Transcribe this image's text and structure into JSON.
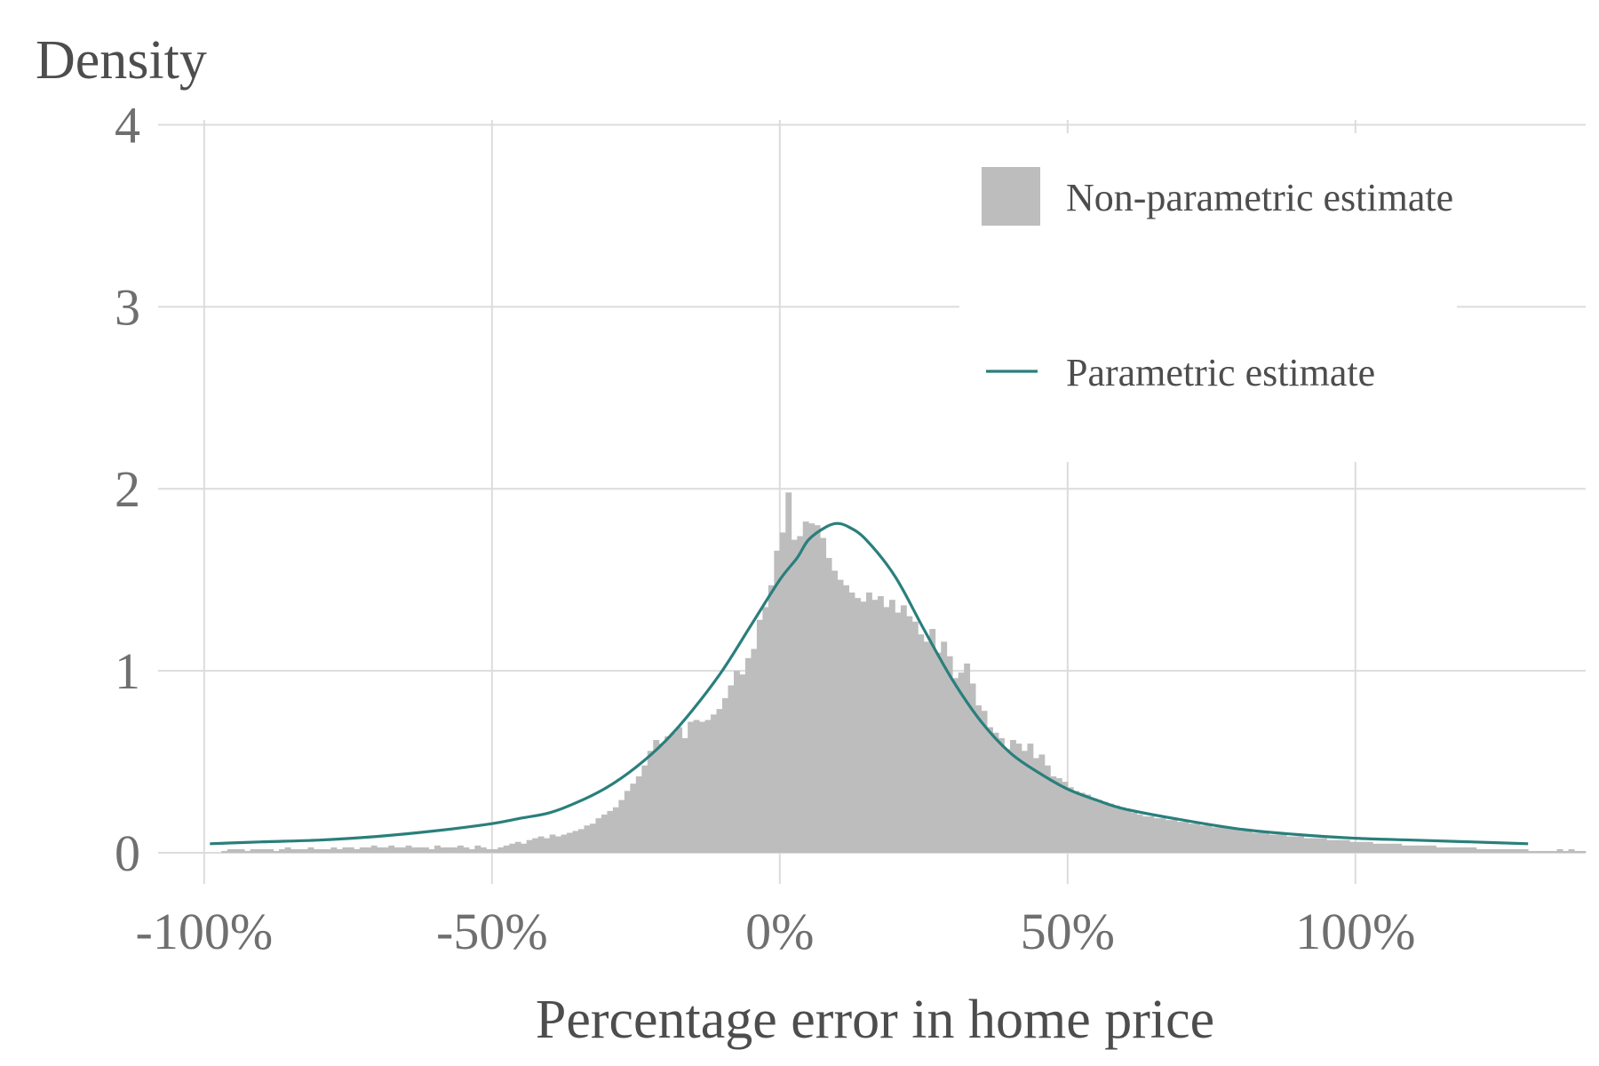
{
  "chart_data": {
    "type": "histogram+line",
    "ylabel": "Density",
    "xlabel": "Percentage error in home price",
    "xlim": [
      -1.08,
      1.4
    ],
    "ylim": [
      0,
      4.1
    ],
    "xticks": [
      {
        "value": -1.0,
        "label": "-100%"
      },
      {
        "value": -0.5,
        "label": "-50%"
      },
      {
        "value": 0.0,
        "label": "0%"
      },
      {
        "value": 0.5,
        "label": "50%"
      },
      {
        "value": 1.0,
        "label": "100%"
      }
    ],
    "yticks": [
      {
        "value": 0,
        "label": "0"
      },
      {
        "value": 1,
        "label": "1"
      },
      {
        "value": 2,
        "label": "2"
      },
      {
        "value": 3,
        "label": "3"
      },
      {
        "value": 4,
        "label": "4"
      }
    ],
    "grid": true,
    "legend": {
      "placement": "top-right",
      "entries": [
        {
          "label": "Non-parametric estimate",
          "kind": "fill",
          "color": "#bdbdbd"
        },
        {
          "label": "Parametric estimate",
          "kind": "line",
          "color": "#2a7f7c"
        }
      ]
    },
    "histogram": {
      "name": "Non-parametric estimate",
      "color": "#bdbdbd",
      "bin_width": 0.01,
      "bins": [
        [
          -0.97,
          0.01
        ],
        [
          -0.96,
          0.02
        ],
        [
          -0.95,
          0.02
        ],
        [
          -0.94,
          0.02
        ],
        [
          -0.93,
          0.01
        ],
        [
          -0.92,
          0.02
        ],
        [
          -0.91,
          0.02
        ],
        [
          -0.9,
          0.02
        ],
        [
          -0.89,
          0.02
        ],
        [
          -0.88,
          0.01
        ],
        [
          -0.87,
          0.02
        ],
        [
          -0.86,
          0.03
        ],
        [
          -0.85,
          0.02
        ],
        [
          -0.84,
          0.02
        ],
        [
          -0.83,
          0.02
        ],
        [
          -0.82,
          0.03
        ],
        [
          -0.81,
          0.02
        ],
        [
          -0.8,
          0.02
        ],
        [
          -0.79,
          0.02
        ],
        [
          -0.78,
          0.03
        ],
        [
          -0.77,
          0.02
        ],
        [
          -0.76,
          0.03
        ],
        [
          -0.75,
          0.03
        ],
        [
          -0.74,
          0.02
        ],
        [
          -0.73,
          0.03
        ],
        [
          -0.72,
          0.03
        ],
        [
          -0.71,
          0.04
        ],
        [
          -0.7,
          0.03
        ],
        [
          -0.69,
          0.03
        ],
        [
          -0.68,
          0.04
        ],
        [
          -0.67,
          0.03
        ],
        [
          -0.66,
          0.03
        ],
        [
          -0.65,
          0.04
        ],
        [
          -0.64,
          0.03
        ],
        [
          -0.63,
          0.03
        ],
        [
          -0.62,
          0.03
        ],
        [
          -0.61,
          0.02
        ],
        [
          -0.6,
          0.04
        ],
        [
          -0.59,
          0.03
        ],
        [
          -0.58,
          0.03
        ],
        [
          -0.57,
          0.03
        ],
        [
          -0.56,
          0.04
        ],
        [
          -0.55,
          0.03
        ],
        [
          -0.54,
          0.02
        ],
        [
          -0.53,
          0.04
        ],
        [
          -0.52,
          0.03
        ],
        [
          -0.51,
          0.02
        ],
        [
          -0.5,
          0.02
        ],
        [
          -0.49,
          0.03
        ],
        [
          -0.48,
          0.04
        ],
        [
          -0.47,
          0.05
        ],
        [
          -0.46,
          0.06
        ],
        [
          -0.45,
          0.05
        ],
        [
          -0.44,
          0.07
        ],
        [
          -0.43,
          0.08
        ],
        [
          -0.42,
          0.09
        ],
        [
          -0.41,
          0.08
        ],
        [
          -0.4,
          0.1
        ],
        [
          -0.39,
          0.09
        ],
        [
          -0.38,
          0.1
        ],
        [
          -0.37,
          0.11
        ],
        [
          -0.36,
          0.12
        ],
        [
          -0.35,
          0.13
        ],
        [
          -0.34,
          0.15
        ],
        [
          -0.33,
          0.16
        ],
        [
          -0.32,
          0.19
        ],
        [
          -0.31,
          0.21
        ],
        [
          -0.3,
          0.23
        ],
        [
          -0.29,
          0.25
        ],
        [
          -0.28,
          0.29
        ],
        [
          -0.27,
          0.34
        ],
        [
          -0.26,
          0.38
        ],
        [
          -0.25,
          0.42
        ],
        [
          -0.24,
          0.48
        ],
        [
          -0.23,
          0.56
        ],
        [
          -0.22,
          0.62
        ],
        [
          -0.21,
          0.6
        ],
        [
          -0.2,
          0.64
        ],
        [
          -0.19,
          0.66
        ],
        [
          -0.18,
          0.69
        ],
        [
          -0.17,
          0.63
        ],
        [
          -0.16,
          0.72
        ],
        [
          -0.15,
          0.73
        ],
        [
          -0.14,
          0.72
        ],
        [
          -0.13,
          0.73
        ],
        [
          -0.12,
          0.76
        ],
        [
          -0.11,
          0.79
        ],
        [
          -0.1,
          0.85
        ],
        [
          -0.09,
          0.92
        ],
        [
          -0.08,
          1.0
        ],
        [
          -0.07,
          0.98
        ],
        [
          -0.06,
          1.07
        ],
        [
          -0.05,
          1.12
        ],
        [
          -0.04,
          1.28
        ],
        [
          -0.03,
          1.35
        ],
        [
          -0.02,
          1.47
        ],
        [
          -0.01,
          1.66
        ],
        [
          0.0,
          1.76
        ],
        [
          0.01,
          1.98
        ],
        [
          0.02,
          1.72
        ],
        [
          0.03,
          1.74
        ],
        [
          0.04,
          1.82
        ],
        [
          0.05,
          1.81
        ],
        [
          0.06,
          1.8
        ],
        [
          0.07,
          1.73
        ],
        [
          0.08,
          1.62
        ],
        [
          0.09,
          1.55
        ],
        [
          0.1,
          1.5
        ],
        [
          0.11,
          1.47
        ],
        [
          0.12,
          1.43
        ],
        [
          0.13,
          1.4
        ],
        [
          0.14,
          1.38
        ],
        [
          0.15,
          1.43
        ],
        [
          0.16,
          1.39
        ],
        [
          0.17,
          1.41
        ],
        [
          0.18,
          1.35
        ],
        [
          0.19,
          1.39
        ],
        [
          0.2,
          1.32
        ],
        [
          0.21,
          1.36
        ],
        [
          0.22,
          1.3
        ],
        [
          0.23,
          1.27
        ],
        [
          0.24,
          1.2
        ],
        [
          0.25,
          1.16
        ],
        [
          0.26,
          1.23
        ],
        [
          0.27,
          1.1
        ],
        [
          0.28,
          1.16
        ],
        [
          0.29,
          1.08
        ],
        [
          0.3,
          0.96
        ],
        [
          0.31,
          0.99
        ],
        [
          0.32,
          1.04
        ],
        [
          0.33,
          0.93
        ],
        [
          0.34,
          0.81
        ],
        [
          0.35,
          0.78
        ],
        [
          0.36,
          0.69
        ],
        [
          0.37,
          0.66
        ],
        [
          0.38,
          0.63
        ],
        [
          0.39,
          0.57
        ],
        [
          0.4,
          0.62
        ],
        [
          0.41,
          0.6
        ],
        [
          0.42,
          0.56
        ],
        [
          0.43,
          0.6
        ],
        [
          0.44,
          0.52
        ],
        [
          0.45,
          0.54
        ],
        [
          0.46,
          0.48
        ],
        [
          0.47,
          0.42
        ],
        [
          0.48,
          0.41
        ],
        [
          0.49,
          0.39
        ],
        [
          0.5,
          0.36
        ],
        [
          0.51,
          0.34
        ],
        [
          0.52,
          0.33
        ],
        [
          0.53,
          0.32
        ],
        [
          0.54,
          0.3
        ],
        [
          0.55,
          0.29
        ],
        [
          0.56,
          0.28
        ],
        [
          0.57,
          0.27
        ],
        [
          0.58,
          0.26
        ],
        [
          0.59,
          0.25
        ],
        [
          0.6,
          0.24
        ],
        [
          0.61,
          0.22
        ],
        [
          0.62,
          0.21
        ],
        [
          0.63,
          0.2
        ],
        [
          0.64,
          0.2
        ],
        [
          0.65,
          0.19
        ],
        [
          0.66,
          0.19
        ],
        [
          0.67,
          0.18
        ],
        [
          0.68,
          0.18
        ],
        [
          0.69,
          0.17
        ],
        [
          0.7,
          0.17
        ],
        [
          0.71,
          0.16
        ],
        [
          0.72,
          0.16
        ],
        [
          0.73,
          0.15
        ],
        [
          0.74,
          0.15
        ],
        [
          0.75,
          0.14
        ],
        [
          0.76,
          0.14
        ],
        [
          0.77,
          0.14
        ],
        [
          0.78,
          0.13
        ],
        [
          0.79,
          0.13
        ],
        [
          0.8,
          0.12
        ],
        [
          0.81,
          0.12
        ],
        [
          0.82,
          0.11
        ],
        [
          0.83,
          0.11
        ],
        [
          0.84,
          0.11
        ],
        [
          0.85,
          0.1
        ],
        [
          0.86,
          0.1
        ],
        [
          0.87,
          0.1
        ],
        [
          0.88,
          0.09
        ],
        [
          0.89,
          0.09
        ],
        [
          0.9,
          0.09
        ],
        [
          0.91,
          0.08
        ],
        [
          0.92,
          0.08
        ],
        [
          0.93,
          0.08
        ],
        [
          0.94,
          0.08
        ],
        [
          0.95,
          0.07
        ],
        [
          0.96,
          0.07
        ],
        [
          0.97,
          0.07
        ],
        [
          0.98,
          0.07
        ],
        [
          0.99,
          0.06
        ],
        [
          1.0,
          0.06
        ],
        [
          1.01,
          0.06
        ],
        [
          1.02,
          0.06
        ],
        [
          1.03,
          0.05
        ],
        [
          1.04,
          0.05
        ],
        [
          1.05,
          0.05
        ],
        [
          1.06,
          0.05
        ],
        [
          1.07,
          0.05
        ],
        [
          1.08,
          0.04
        ],
        [
          1.09,
          0.04
        ],
        [
          1.1,
          0.04
        ],
        [
          1.11,
          0.04
        ],
        [
          1.12,
          0.04
        ],
        [
          1.13,
          0.04
        ],
        [
          1.14,
          0.03
        ],
        [
          1.15,
          0.03
        ],
        [
          1.16,
          0.03
        ],
        [
          1.17,
          0.03
        ],
        [
          1.18,
          0.03
        ],
        [
          1.19,
          0.03
        ],
        [
          1.2,
          0.03
        ],
        [
          1.21,
          0.02
        ],
        [
          1.22,
          0.02
        ],
        [
          1.23,
          0.02
        ],
        [
          1.24,
          0.02
        ],
        [
          1.25,
          0.02
        ],
        [
          1.26,
          0.02
        ],
        [
          1.27,
          0.02
        ],
        [
          1.28,
          0.02
        ],
        [
          1.29,
          0.02
        ],
        [
          1.3,
          0.01
        ],
        [
          1.31,
          0.01
        ],
        [
          1.32,
          0.01
        ],
        [
          1.33,
          0.01
        ],
        [
          1.34,
          0.01
        ],
        [
          1.35,
          0.02
        ],
        [
          1.36,
          0.01
        ],
        [
          1.37,
          0.02
        ],
        [
          1.38,
          0.01
        ],
        [
          1.39,
          0.01
        ]
      ]
    },
    "curve": {
      "name": "Parametric estimate",
      "color": "#2a7f7c",
      "points": [
        [
          -0.99,
          0.05
        ],
        [
          -0.9,
          0.06
        ],
        [
          -0.8,
          0.07
        ],
        [
          -0.7,
          0.09
        ],
        [
          -0.6,
          0.12
        ],
        [
          -0.5,
          0.16
        ],
        [
          -0.45,
          0.19
        ],
        [
          -0.4,
          0.22
        ],
        [
          -0.35,
          0.28
        ],
        [
          -0.3,
          0.36
        ],
        [
          -0.25,
          0.47
        ],
        [
          -0.2,
          0.61
        ],
        [
          -0.15,
          0.79
        ],
        [
          -0.1,
          1.0
        ],
        [
          -0.05,
          1.25
        ],
        [
          0.0,
          1.5
        ],
        [
          0.03,
          1.62
        ],
        [
          0.05,
          1.72
        ],
        [
          0.08,
          1.79
        ],
        [
          0.1,
          1.81
        ],
        [
          0.12,
          1.79
        ],
        [
          0.15,
          1.72
        ],
        [
          0.2,
          1.52
        ],
        [
          0.25,
          1.23
        ],
        [
          0.3,
          0.95
        ],
        [
          0.35,
          0.72
        ],
        [
          0.4,
          0.55
        ],
        [
          0.45,
          0.44
        ],
        [
          0.5,
          0.35
        ],
        [
          0.55,
          0.29
        ],
        [
          0.6,
          0.24
        ],
        [
          0.7,
          0.18
        ],
        [
          0.8,
          0.13
        ],
        [
          0.9,
          0.1
        ],
        [
          1.0,
          0.08
        ],
        [
          1.1,
          0.07
        ],
        [
          1.2,
          0.06
        ],
        [
          1.3,
          0.05
        ]
      ]
    }
  }
}
